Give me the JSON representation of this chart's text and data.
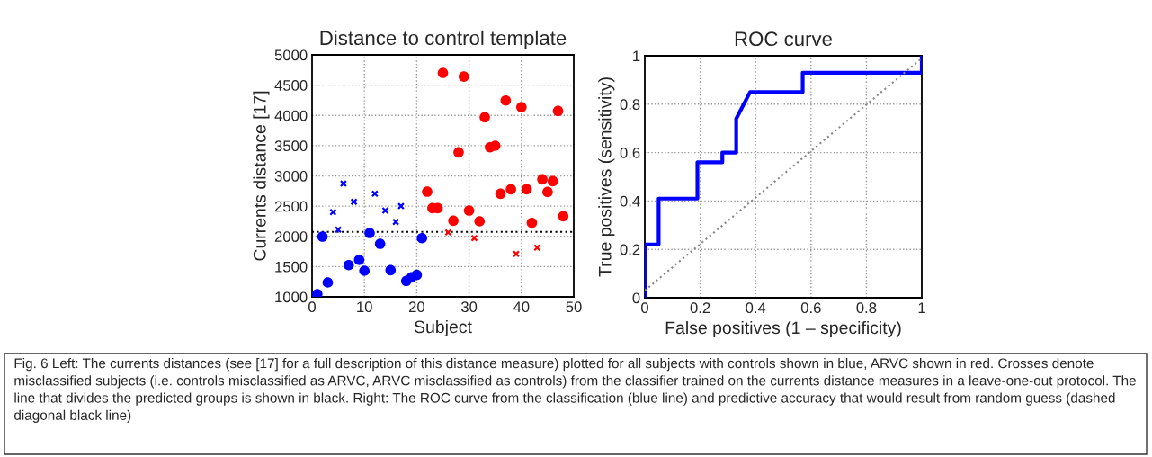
{
  "chart_data": [
    {
      "type": "scatter",
      "title": "Distance to control template",
      "xlabel": "Subject",
      "ylabel": "Currents distance [17]",
      "xlim": [
        0,
        50
      ],
      "xticks": [
        0,
        10,
        20,
        30,
        40,
        50
      ],
      "ylim": [
        1000,
        5000
      ],
      "yticks": [
        1000,
        1500,
        2000,
        2500,
        3000,
        3500,
        4000,
        4500,
        5000
      ],
      "grid": true,
      "series": [
        {
          "color": "#0000ff",
          "marker": "circle",
          "x": [
            1,
            2,
            3,
            7,
            9,
            10,
            11,
            13,
            15,
            18,
            19,
            20,
            21
          ],
          "values": [
            1045,
            1996,
            1238,
            1525,
            1610,
            1431,
            2055,
            1877,
            1441,
            1263,
            1322,
            1362,
            1971
          ]
        },
        {
          "color": "#0000ff",
          "marker": "cross",
          "x": [
            4,
            5,
            6,
            8,
            12,
            14,
            16,
            17
          ],
          "values": [
            2402,
            2110,
            2873,
            2571,
            2705,
            2427,
            2239,
            2501
          ]
        },
        {
          "color": "#ff0000",
          "marker": "circle",
          "x": [
            22,
            23,
            24,
            25,
            27,
            28,
            29,
            30,
            32,
            33,
            34,
            35,
            36,
            37,
            38,
            40,
            41,
            42,
            44,
            45,
            46,
            47,
            48
          ],
          "values": [
            2739,
            2467,
            2467,
            4702,
            2259,
            3389,
            4642,
            2427,
            2249,
            3969,
            3473,
            3498,
            2705,
            4246,
            2779,
            4137,
            2779,
            2224,
            2943,
            2734,
            2913,
            4073,
            2333
          ]
        },
        {
          "color": "#ff0000",
          "marker": "cross",
          "x": [
            26,
            31,
            39,
            43
          ],
          "values": [
            2065,
            1971,
            1709,
            1813
          ]
        }
      ],
      "ref_lines": [
        {
          "axis": "y",
          "value": 2075,
          "color": "#000000",
          "line_style": "dotted"
        }
      ],
      "annotations": [
        "Fig. 6 Left: The currents distances (see [17] for a full description of this distance measure) plotted for all subjects with controls shown in blue, ARVC shown in red. Crosses denote misclassified subjects (i.e. controls misclassified as ARVC, ARVC misclassified as controls) from the classifier trained on the currents distance measures in a leave-one-out protocol. The line that divides the predicted groups is shown in black. Right: The ROC curve from the classification (blue line) and predictive accuracy that would result from random guess (dashed diagonal black line)"
      ]
    },
    {
      "type": "line",
      "title": "ROC curve",
      "xlabel": "False positives (1 – specificity)",
      "ylabel": "True positives (sensitivity)",
      "xlim": [
        0,
        1
      ],
      "xticks": [
        0,
        0.2,
        0.4,
        0.6,
        0.8,
        1
      ],
      "ylim": [
        0,
        1
      ],
      "yticks": [
        0,
        0.2,
        0.4,
        0.6,
        0.8,
        1
      ],
      "grid": true,
      "series": [
        {
          "color": "#0000ff",
          "line_style": "solid",
          "x": [
            0,
            0,
            0.05,
            0.05,
            0.19,
            0.19,
            0.28,
            0.28,
            0.33,
            0.33,
            0.38,
            0.57,
            0.57,
            1,
            1
          ],
          "values": [
            0,
            0.22,
            0.22,
            0.41,
            0.41,
            0.56,
            0.56,
            0.6,
            0.6,
            0.74,
            0.85,
            0.85,
            0.93,
            0.93,
            1
          ]
        },
        {
          "color": "#888888",
          "line_style": "dotted",
          "x": [
            0,
            1
          ],
          "values": [
            0.03,
            0.99
          ]
        }
      ]
    }
  ]
}
